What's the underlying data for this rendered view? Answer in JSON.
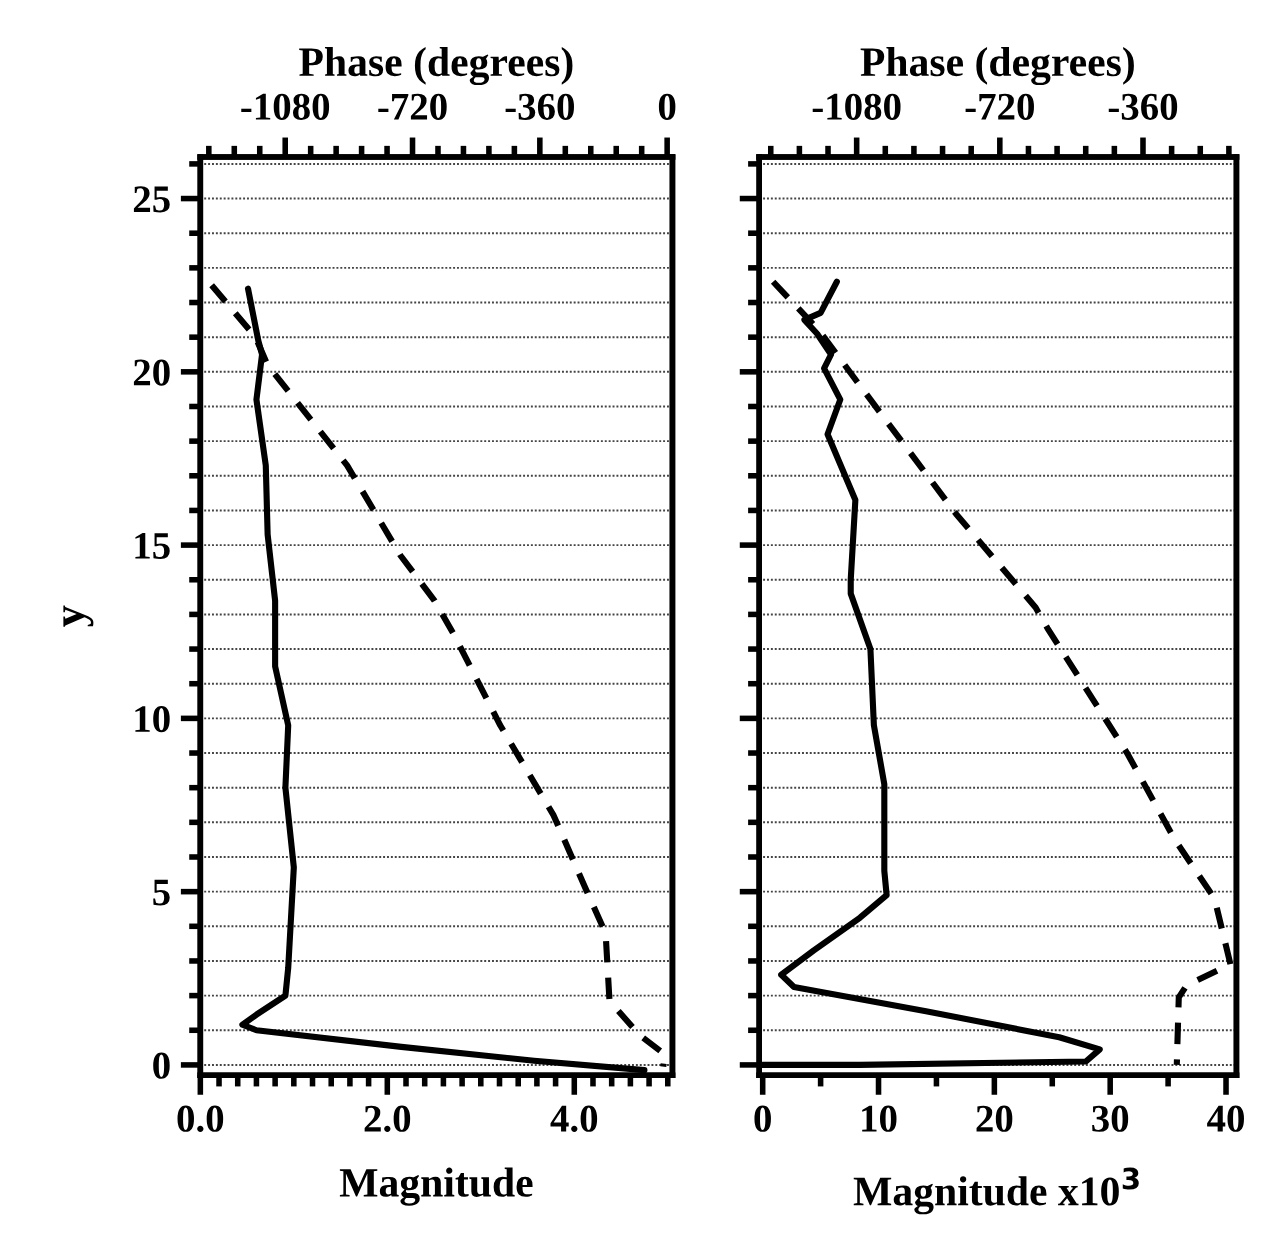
{
  "chart_data": [
    {
      "type": "line",
      "xlabel": "Magnitude",
      "x2label": "Phase (degrees)",
      "ylabel": "y",
      "grid": "y",
      "marker": "none",
      "xlim": [
        0,
        5.05
      ],
      "xticks": [
        {
          "value": 0,
          "label": "0.0"
        },
        {
          "value": 0.2,
          "label": null
        },
        {
          "value": 0.4,
          "label": null
        },
        {
          "value": 0.6,
          "label": null
        },
        {
          "value": 0.8,
          "label": null
        },
        {
          "value": 1.0,
          "label": null
        },
        {
          "value": 1.2,
          "label": null
        },
        {
          "value": 1.4,
          "label": null
        },
        {
          "value": 1.6,
          "label": null
        },
        {
          "value": 1.8,
          "label": null
        },
        {
          "value": 2.0,
          "label": "2.0"
        },
        {
          "value": 2.2,
          "label": null
        },
        {
          "value": 2.4,
          "label": null
        },
        {
          "value": 2.6,
          "label": null
        },
        {
          "value": 2.8,
          "label": null
        },
        {
          "value": 3.0,
          "label": null
        },
        {
          "value": 3.2,
          "label": null
        },
        {
          "value": 3.4,
          "label": null
        },
        {
          "value": 3.6,
          "label": null
        },
        {
          "value": 3.8,
          "label": null
        },
        {
          "value": 4.0,
          "label": "4.0"
        },
        {
          "value": 4.2,
          "label": null
        },
        {
          "value": 4.4,
          "label": null
        },
        {
          "value": 4.6,
          "label": null
        },
        {
          "value": 4.8,
          "label": null
        },
        {
          "value": 5.0,
          "label": null
        }
      ],
      "x2lim": [
        -1320,
        15
      ],
      "x2ticks": [
        {
          "value": -1296,
          "label": null
        },
        {
          "value": -1224,
          "label": null
        },
        {
          "value": -1152,
          "label": null
        },
        -1080,
        {
          "value": -1008,
          "label": null
        },
        {
          "value": -936,
          "label": null
        },
        {
          "value": -864,
          "label": null
        },
        {
          "value": -792,
          "label": null
        },
        -720,
        {
          "value": -648,
          "label": null
        },
        {
          "value": -576,
          "label": null
        },
        {
          "value": -504,
          "label": null
        },
        {
          "value": -432,
          "label": null
        },
        -360,
        {
          "value": -288,
          "label": null
        },
        {
          "value": -216,
          "label": null
        },
        {
          "value": -144,
          "label": null
        },
        {
          "value": -72,
          "label": null
        },
        0
      ],
      "ylim": [
        -0.3,
        26.2
      ],
      "yticks": [
        0,
        {
          "value": 1,
          "label": null
        },
        {
          "value": 2,
          "label": null
        },
        {
          "value": 3,
          "label": null
        },
        {
          "value": 4,
          "label": null
        },
        5,
        {
          "value": 6,
          "label": null
        },
        {
          "value": 7,
          "label": null
        },
        {
          "value": 8,
          "label": null
        },
        {
          "value": 9,
          "label": null
        },
        10,
        {
          "value": 11,
          "label": null
        },
        {
          "value": 12,
          "label": null
        },
        {
          "value": 13,
          "label": null
        },
        {
          "value": 14,
          "label": null
        },
        15,
        {
          "value": 16,
          "label": null
        },
        {
          "value": 17,
          "label": null
        },
        {
          "value": 18,
          "label": null
        },
        {
          "value": 19,
          "label": null
        },
        20,
        {
          "value": 21,
          "label": null
        },
        {
          "value": 22,
          "label": null
        },
        {
          "value": 23,
          "label": null
        },
        {
          "value": 24,
          "label": null
        },
        25,
        {
          "value": 26,
          "label": null
        }
      ],
      "series": [
        {
          "color": "#000000",
          "line_style": "solid",
          "x": [
            0.51,
            0.62,
            0.66,
            0.6,
            0.7,
            0.72,
            0.8,
            0.8,
            0.8,
            0.94,
            0.91,
            1.0,
            0.94,
            0.91,
            0.6,
            0.45,
            0.6,
            2.15,
            3.57,
            4.75
          ],
          "values": [
            22.4,
            20.9,
            20.5,
            19.2,
            17.3,
            15.3,
            13.4,
            12.3,
            11.5,
            9.8,
            8.0,
            5.7,
            2.8,
            2.0,
            1.45,
            1.16,
            1.0,
            0.52,
            0.12,
            -0.15
          ]
        },
        {
          "color": "#000000",
          "line_style": "dashed",
          "axis": "x2",
          "x": [
            -1288,
            -1164,
            -1130,
            -905,
            -754,
            -658,
            -602,
            -472,
            -321,
            -231,
            -174,
            -163,
            -79,
            -6,
            -11
          ],
          "values": [
            22.5,
            21.0,
            20.2,
            17.3,
            14.7,
            13.4,
            12.4,
            9.8,
            7.2,
            5.1,
            3.8,
            1.85,
            0.87,
            0.3,
            -0.05
          ]
        }
      ]
    },
    {
      "type": "line",
      "xlabel": "Magnitude x10$^{3}$",
      "x2label": "Phase (degrees)",
      "grid": "y",
      "marker": "none",
      "tick_labels": "x",
      "xlim": [
        -0.3,
        40.9
      ],
      "xticks": [
        0,
        {
          "value": 5,
          "label": null
        },
        10,
        {
          "value": 15,
          "label": null
        },
        20,
        {
          "value": 25,
          "label": null
        },
        30,
        {
          "value": 35,
          "label": null
        },
        40
      ],
      "x2lim": [
        -1325,
        -125
      ],
      "x2ticks": [
        {
          "value": -1296,
          "label": null
        },
        {
          "value": -1224,
          "label": null
        },
        {
          "value": -1152,
          "label": null
        },
        -1080,
        {
          "value": -1008,
          "label": null
        },
        {
          "value": -936,
          "label": null
        },
        {
          "value": -864,
          "label": null
        },
        {
          "value": -792,
          "label": null
        },
        -720,
        {
          "value": -648,
          "label": null
        },
        {
          "value": -576,
          "label": null
        },
        {
          "value": -504,
          "label": null
        },
        {
          "value": -432,
          "label": null
        },
        -360,
        {
          "value": -288,
          "label": null
        },
        {
          "value": -216,
          "label": null
        },
        {
          "value": -144,
          "label": null
        }
      ],
      "ylim": [
        -0.3,
        26.2
      ],
      "yticks": [
        0,
        {
          "value": 1,
          "label": null
        },
        {
          "value": 2,
          "label": null
        },
        {
          "value": 3,
          "label": null
        },
        {
          "value": 4,
          "label": null
        },
        5,
        {
          "value": 6,
          "label": null
        },
        {
          "value": 7,
          "label": null
        },
        {
          "value": 8,
          "label": null
        },
        {
          "value": 9,
          "label": null
        },
        10,
        {
          "value": 11,
          "label": null
        },
        {
          "value": 12,
          "label": null
        },
        {
          "value": 13,
          "label": null
        },
        {
          "value": 14,
          "label": null
        },
        15,
        {
          "value": 16,
          "label": null
        },
        {
          "value": 17,
          "label": null
        },
        {
          "value": 18,
          "label": null
        },
        {
          "value": 19,
          "label": null
        },
        20,
        {
          "value": 21,
          "label": null
        },
        {
          "value": 22,
          "label": null
        },
        {
          "value": 23,
          "label": null
        },
        {
          "value": 24,
          "label": null
        },
        25,
        {
          "value": 26,
          "label": null
        }
      ],
      "series": [
        {
          "color": "#000000",
          "line_style": "solid",
          "x": [
            6.4,
            5.0,
            3.6,
            4.7,
            5.9,
            5.3,
            6.7,
            5.6,
            8.0,
            7.6,
            7.6,
            9.3,
            9.6,
            10.5,
            10.5,
            10.7,
            8.4,
            4.4,
            1.6,
            2.7,
            14.1,
            25.6,
            29.1,
            27.9,
            8.4,
            0
          ],
          "values": [
            22.6,
            21.7,
            21.5,
            21.1,
            20.5,
            20.1,
            19.2,
            18.2,
            16.3,
            14.0,
            13.6,
            12.0,
            9.8,
            8.1,
            5.6,
            4.9,
            4.25,
            3.3,
            2.6,
            2.25,
            1.55,
            0.8,
            0.45,
            0.1,
            0,
            0
          ]
        },
        {
          "color": "#000000",
          "line_style": "dashed",
          "axis": "x2",
          "x": [
            -1290,
            -1175,
            -1065,
            -830,
            -630,
            -600,
            -400,
            -280,
            -180,
            -140,
            -250,
            -270,
            -275
          ],
          "values": [
            22.6,
            21.2,
            19.5,
            15.9,
            13.2,
            12.6,
            9.0,
            6.5,
            4.8,
            2.9,
            2.3,
            1.95,
            0
          ]
        }
      ]
    }
  ]
}
